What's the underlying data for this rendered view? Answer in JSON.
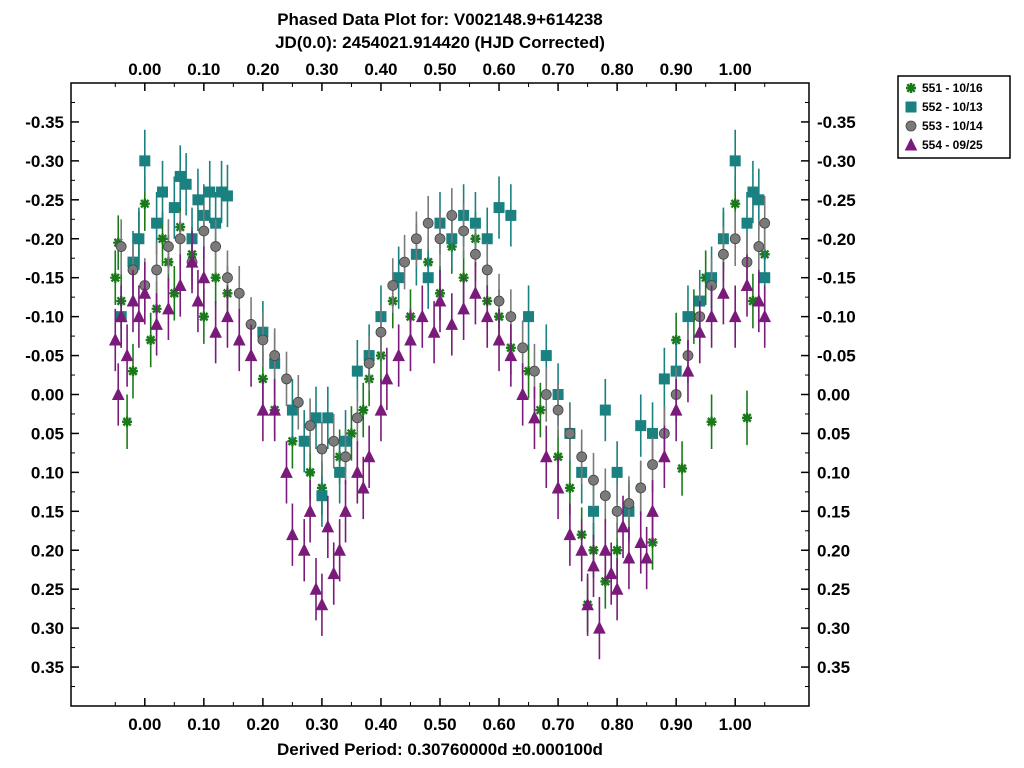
{
  "chart_data": {
    "type": "scatter",
    "title": "Phased Data Plot for: V002148.9+614238",
    "subtitle": "JD(0.0): 2454021.914420 (HJD Corrected)",
    "xlabel": "Derived Period: 0.30760000d   ±0.000100d",
    "ylabel": "",
    "xlim": [
      -0.125,
      1.125
    ],
    "ylim": [
      -0.4,
      0.4
    ],
    "y_inverted": true,
    "grid": false,
    "legend_position": "top-right-outside",
    "x_ticks": [
      "0.00",
      "0.10",
      "0.20",
      "0.30",
      "0.40",
      "0.50",
      "0.60",
      "0.70",
      "0.80",
      "0.90",
      "1.00"
    ],
    "x_tick_values": [
      0,
      0.1,
      0.2,
      0.3,
      0.4,
      0.5,
      0.6,
      0.7,
      0.8,
      0.9,
      1.0
    ],
    "y_ticks": [
      "-0.35",
      "-0.30",
      "-0.25",
      "-0.20",
      "-0.15",
      "-0.10",
      "-0.05",
      "0.00",
      "0.05",
      "0.10",
      "0.15",
      "0.20",
      "0.25",
      "0.30",
      "0.35"
    ],
    "y_tick_values": [
      -0.35,
      -0.3,
      -0.25,
      -0.2,
      -0.15,
      -0.1,
      -0.05,
      0,
      0.05,
      0.1,
      0.15,
      0.2,
      0.25,
      0.3,
      0.35
    ],
    "series": [
      {
        "name": "551 - 10/16",
        "marker": "asterisk",
        "color": "#1a7a1a",
        "err": 0.035,
        "points": [
          [
            -0.05,
            -0.15
          ],
          [
            -0.045,
            -0.195
          ],
          [
            -0.04,
            -0.12
          ],
          [
            -0.03,
            0.035
          ],
          [
            -0.02,
            -0.03
          ],
          [
            -0.01,
            -0.2
          ],
          [
            0.0,
            -0.245
          ],
          [
            0.01,
            -0.07
          ],
          [
            0.02,
            -0.11
          ],
          [
            0.03,
            -0.2
          ],
          [
            0.04,
            -0.17
          ],
          [
            0.05,
            -0.13
          ],
          [
            0.06,
            -0.215
          ],
          [
            0.08,
            -0.18
          ],
          [
            0.1,
            -0.1
          ],
          [
            0.12,
            -0.15
          ],
          [
            0.14,
            -0.13
          ],
          [
            0.2,
            -0.02
          ],
          [
            0.22,
            0.02
          ],
          [
            0.25,
            0.06
          ],
          [
            0.28,
            0.1
          ],
          [
            0.3,
            0.12
          ],
          [
            0.33,
            0.08
          ],
          [
            0.35,
            0.05
          ],
          [
            0.37,
            0.02
          ],
          [
            0.38,
            -0.02
          ],
          [
            0.4,
            -0.05
          ],
          [
            0.42,
            -0.12
          ],
          [
            0.45,
            -0.1
          ],
          [
            0.48,
            -0.17
          ],
          [
            0.5,
            -0.13
          ],
          [
            0.52,
            -0.19
          ],
          [
            0.54,
            -0.15
          ],
          [
            0.56,
            -0.2
          ],
          [
            0.58,
            -0.12
          ],
          [
            0.6,
            -0.1
          ],
          [
            0.62,
            -0.06
          ],
          [
            0.65,
            -0.03
          ],
          [
            0.67,
            0.02
          ],
          [
            0.7,
            0.08
          ],
          [
            0.72,
            0.12
          ],
          [
            0.74,
            0.18
          ],
          [
            0.75,
            0.27
          ],
          [
            0.76,
            0.2
          ],
          [
            0.78,
            0.24
          ],
          [
            0.8,
            0.2
          ],
          [
            0.82,
            0.15
          ],
          [
            0.84,
            0.12
          ],
          [
            0.86,
            0.19
          ],
          [
            0.88,
            0.05
          ],
          [
            0.9,
            -0.07
          ],
          [
            0.91,
            0.095
          ],
          [
            0.93,
            -0.1
          ],
          [
            0.95,
            -0.15
          ],
          [
            0.96,
            0.035
          ],
          [
            0.98,
            -0.2
          ],
          [
            1.0,
            -0.245
          ],
          [
            1.02,
            0.03
          ],
          [
            1.03,
            -0.12
          ],
          [
            1.05,
            -0.18
          ]
        ]
      },
      {
        "name": "552 - 10/13",
        "marker": "square",
        "color": "#1a8080",
        "err": 0.04,
        "points": [
          [
            -0.04,
            -0.1
          ],
          [
            -0.02,
            -0.17
          ],
          [
            -0.01,
            -0.2
          ],
          [
            0.0,
            -0.3
          ],
          [
            0.02,
            -0.22
          ],
          [
            0.03,
            -0.26
          ],
          [
            0.05,
            -0.24
          ],
          [
            0.06,
            -0.28
          ],
          [
            0.07,
            -0.27
          ],
          [
            0.08,
            -0.2
          ],
          [
            0.09,
            -0.25
          ],
          [
            0.1,
            -0.23
          ],
          [
            0.11,
            -0.26
          ],
          [
            0.12,
            -0.22
          ],
          [
            0.13,
            -0.26
          ],
          [
            0.14,
            -0.255
          ],
          [
            0.2,
            -0.08
          ],
          [
            0.22,
            -0.04
          ],
          [
            0.25,
            0.02
          ],
          [
            0.27,
            0.06
          ],
          [
            0.29,
            0.03
          ],
          [
            0.3,
            0.13
          ],
          [
            0.31,
            0.03
          ],
          [
            0.33,
            0.1
          ],
          [
            0.34,
            0.06
          ],
          [
            0.36,
            -0.03
          ],
          [
            0.38,
            -0.05
          ],
          [
            0.4,
            -0.1
          ],
          [
            0.43,
            -0.15
          ],
          [
            0.46,
            -0.18
          ],
          [
            0.48,
            -0.15
          ],
          [
            0.5,
            -0.22
          ],
          [
            0.52,
            -0.2
          ],
          [
            0.54,
            -0.23
          ],
          [
            0.56,
            -0.22
          ],
          [
            0.58,
            -0.2
          ],
          [
            0.6,
            -0.24
          ],
          [
            0.62,
            -0.23
          ],
          [
            0.65,
            -0.1
          ],
          [
            0.68,
            -0.05
          ],
          [
            0.7,
            0.0
          ],
          [
            0.72,
            0.05
          ],
          [
            0.74,
            0.1
          ],
          [
            0.76,
            0.15
          ],
          [
            0.78,
            0.02
          ],
          [
            0.8,
            0.1
          ],
          [
            0.82,
            0.15
          ],
          [
            0.84,
            0.04
          ],
          [
            0.86,
            0.05
          ],
          [
            0.88,
            -0.02
          ],
          [
            0.9,
            -0.03
          ],
          [
            0.92,
            -0.1
          ],
          [
            0.94,
            -0.12
          ],
          [
            0.96,
            -0.15
          ],
          [
            0.98,
            -0.2
          ],
          [
            1.0,
            -0.3
          ],
          [
            1.02,
            -0.22
          ],
          [
            1.03,
            -0.26
          ],
          [
            1.04,
            -0.25
          ],
          [
            1.05,
            -0.15
          ]
        ]
      },
      {
        "name": "553 - 10/14",
        "marker": "circle",
        "color": "#7a7a7a",
        "err": 0.035,
        "points": [
          [
            -0.04,
            -0.19
          ],
          [
            -0.02,
            -0.16
          ],
          [
            0.0,
            -0.14
          ],
          [
            0.02,
            -0.16
          ],
          [
            0.04,
            -0.19
          ],
          [
            0.06,
            -0.2
          ],
          [
            0.08,
            -0.17
          ],
          [
            0.1,
            -0.21
          ],
          [
            0.12,
            -0.19
          ],
          [
            0.14,
            -0.15
          ],
          [
            0.16,
            -0.13
          ],
          [
            0.18,
            -0.09
          ],
          [
            0.2,
            -0.07
          ],
          [
            0.22,
            -0.05
          ],
          [
            0.24,
            -0.02
          ],
          [
            0.26,
            0.01
          ],
          [
            0.28,
            0.04
          ],
          [
            0.3,
            0.07
          ],
          [
            0.32,
            0.06
          ],
          [
            0.34,
            0.08
          ],
          [
            0.36,
            0.03
          ],
          [
            0.38,
            -0.04
          ],
          [
            0.4,
            -0.08
          ],
          [
            0.42,
            -0.14
          ],
          [
            0.44,
            -0.17
          ],
          [
            0.46,
            -0.2
          ],
          [
            0.48,
            -0.22
          ],
          [
            0.5,
            -0.2
          ],
          [
            0.52,
            -0.23
          ],
          [
            0.54,
            -0.21
          ],
          [
            0.56,
            -0.18
          ],
          [
            0.58,
            -0.16
          ],
          [
            0.6,
            -0.12
          ],
          [
            0.62,
            -0.1
          ],
          [
            0.64,
            -0.06
          ],
          [
            0.66,
            -0.03
          ],
          [
            0.68,
            0.0
          ],
          [
            0.7,
            0.02
          ],
          [
            0.72,
            0.05
          ],
          [
            0.74,
            0.08
          ],
          [
            0.76,
            0.11
          ],
          [
            0.78,
            0.13
          ],
          [
            0.8,
            0.15
          ],
          [
            0.82,
            0.14
          ],
          [
            0.84,
            0.12
          ],
          [
            0.86,
            0.09
          ],
          [
            0.88,
            0.05
          ],
          [
            0.9,
            0.0
          ],
          [
            0.92,
            -0.05
          ],
          [
            0.94,
            -0.1
          ],
          [
            0.96,
            -0.14
          ],
          [
            0.98,
            -0.18
          ],
          [
            1.0,
            -0.2
          ],
          [
            1.02,
            -0.17
          ],
          [
            1.04,
            -0.19
          ],
          [
            1.05,
            -0.22
          ]
        ]
      },
      {
        "name": "554 - 09/25",
        "marker": "triangle",
        "color": "#7a1a7a",
        "err": 0.04,
        "points": [
          [
            -0.05,
            -0.07
          ],
          [
            -0.045,
            0.0
          ],
          [
            -0.04,
            -0.1
          ],
          [
            -0.03,
            -0.05
          ],
          [
            -0.02,
            -0.12
          ],
          [
            -0.01,
            -0.1
          ],
          [
            0.0,
            -0.13
          ],
          [
            0.02,
            -0.09
          ],
          [
            0.04,
            -0.11
          ],
          [
            0.06,
            -0.14
          ],
          [
            0.08,
            -0.17
          ],
          [
            0.09,
            -0.12
          ],
          [
            0.1,
            -0.15
          ],
          [
            0.12,
            -0.08
          ],
          [
            0.14,
            -0.1
          ],
          [
            0.16,
            -0.07
          ],
          [
            0.18,
            -0.05
          ],
          [
            0.2,
            0.02
          ],
          [
            0.22,
            0.02
          ],
          [
            0.24,
            0.1
          ],
          [
            0.25,
            0.18
          ],
          [
            0.27,
            0.2
          ],
          [
            0.28,
            0.15
          ],
          [
            0.29,
            0.25
          ],
          [
            0.3,
            0.27
          ],
          [
            0.31,
            0.17
          ],
          [
            0.32,
            0.23
          ],
          [
            0.33,
            0.2
          ],
          [
            0.34,
            0.15
          ],
          [
            0.36,
            0.1
          ],
          [
            0.37,
            0.12
          ],
          [
            0.38,
            0.08
          ],
          [
            0.4,
            0.02
          ],
          [
            0.41,
            -0.02
          ],
          [
            0.43,
            -0.05
          ],
          [
            0.45,
            -0.07
          ],
          [
            0.47,
            -0.1
          ],
          [
            0.49,
            -0.08
          ],
          [
            0.5,
            -0.12
          ],
          [
            0.52,
            -0.09
          ],
          [
            0.54,
            -0.11
          ],
          [
            0.56,
            -0.13
          ],
          [
            0.58,
            -0.1
          ],
          [
            0.6,
            -0.07
          ],
          [
            0.62,
            -0.05
          ],
          [
            0.64,
            0.0
          ],
          [
            0.66,
            0.03
          ],
          [
            0.68,
            0.08
          ],
          [
            0.7,
            0.12
          ],
          [
            0.72,
            0.18
          ],
          [
            0.74,
            0.2
          ],
          [
            0.75,
            0.27
          ],
          [
            0.76,
            0.22
          ],
          [
            0.77,
            0.3
          ],
          [
            0.78,
            0.2
          ],
          [
            0.79,
            0.23
          ],
          [
            0.8,
            0.25
          ],
          [
            0.81,
            0.17
          ],
          [
            0.82,
            0.21
          ],
          [
            0.84,
            0.19
          ],
          [
            0.85,
            0.21
          ],
          [
            0.86,
            0.15
          ],
          [
            0.88,
            0.08
          ],
          [
            0.9,
            0.02
          ],
          [
            0.92,
            -0.03
          ],
          [
            0.94,
            -0.08
          ],
          [
            0.96,
            -0.1
          ],
          [
            0.98,
            -0.13
          ],
          [
            1.0,
            -0.1
          ],
          [
            1.02,
            -0.14
          ],
          [
            1.04,
            -0.12
          ],
          [
            1.05,
            -0.1
          ]
        ]
      }
    ]
  }
}
